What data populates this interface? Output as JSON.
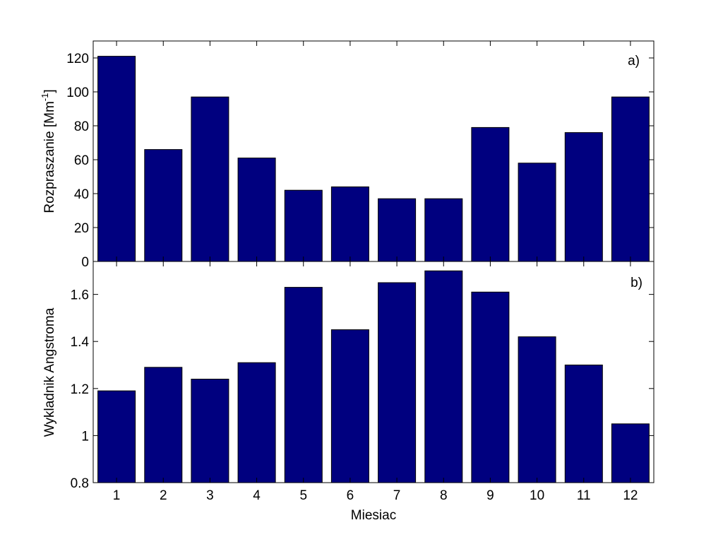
{
  "chart_data": [
    {
      "type": "bar",
      "panel_label": "a)",
      "categories": [
        "1",
        "2",
        "3",
        "4",
        "5",
        "6",
        "7",
        "8",
        "9",
        "10",
        "11",
        "12"
      ],
      "values": [
        121,
        66,
        97,
        61,
        42,
        44,
        37,
        37,
        79,
        58,
        76,
        97
      ],
      "ylabel": "Rozpraszanie [Mm",
      "ylabel_superscript": "-1",
      "ylabel_suffix": "]",
      "ylim": [
        0,
        130
      ],
      "yticks": [
        0,
        20,
        40,
        60,
        80,
        100,
        120
      ],
      "ytick_labels": [
        "0",
        "20",
        "40",
        "60",
        "80",
        "100",
        "120"
      ],
      "grid": false,
      "bar_color": "#00007f"
    },
    {
      "type": "bar",
      "panel_label": "b)",
      "categories": [
        "1",
        "2",
        "3",
        "4",
        "5",
        "6",
        "7",
        "8",
        "9",
        "10",
        "11",
        "12"
      ],
      "values": [
        1.19,
        1.29,
        1.24,
        1.31,
        1.63,
        1.45,
        1.65,
        1.7,
        1.61,
        1.42,
        1.3,
        1.05
      ],
      "ylabel": "Wykladnik Angstroma",
      "xlabel": "Miesiac",
      "ylim": [
        0.8,
        1.74
      ],
      "yticks": [
        0.8,
        1.0,
        1.2,
        1.4,
        1.6
      ],
      "ytick_labels": [
        "0.8",
        "1",
        "1.2",
        "1.4",
        "1.6"
      ],
      "grid": false,
      "bar_color": "#00007f"
    }
  ]
}
